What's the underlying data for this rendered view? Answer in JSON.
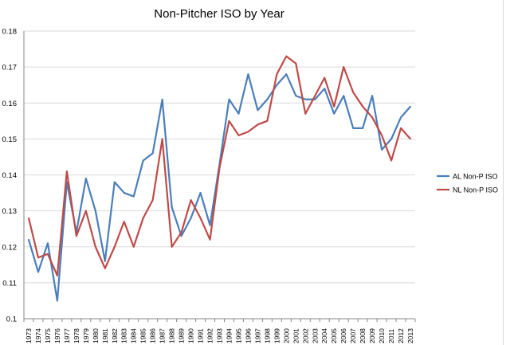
{
  "chart_data": {
    "type": "line",
    "title": "Non-Pitcher ISO by Year",
    "xlabel": "",
    "ylabel": "",
    "ylim": [
      0.1,
      0.18
    ],
    "yticks": [
      "0.1",
      "0.11",
      "0.12",
      "0.13",
      "0.14",
      "0.15",
      "0.16",
      "0.17",
      "0.18"
    ],
    "grid": true,
    "legend_position": "right",
    "categories": [
      "1973",
      "1974",
      "1975",
      "1976",
      "1977",
      "1978",
      "1979",
      "1980",
      "1981",
      "1982",
      "1983",
      "1984",
      "1985",
      "1986",
      "1987",
      "1988",
      "1989",
      "1990",
      "1991",
      "1992",
      "1993",
      "1994",
      "1995",
      "1996",
      "1997",
      "1998",
      "1999",
      "2000",
      "2001",
      "2002",
      "2003",
      "2004",
      "2005",
      "2006",
      "2007",
      "2008",
      "2009",
      "2010",
      "2011",
      "2012",
      "2013"
    ],
    "series": [
      {
        "name": "AL Non-P ISO",
        "color": "#4a7ebb",
        "values": [
          0.122,
          0.113,
          0.121,
          0.105,
          0.138,
          0.124,
          0.139,
          0.13,
          0.116,
          0.138,
          0.135,
          0.134,
          0.144,
          0.146,
          0.161,
          0.131,
          0.123,
          0.128,
          0.135,
          0.126,
          0.143,
          0.161,
          0.157,
          0.168,
          0.158,
          0.161,
          0.165,
          0.168,
          0.162,
          0.161,
          0.161,
          0.164,
          0.157,
          0.162,
          0.153,
          0.153,
          0.162,
          0.147,
          0.15,
          0.156,
          0.159
        ]
      },
      {
        "name": "NL Non-P ISO",
        "color": "#be4b48",
        "values": [
          0.128,
          0.117,
          0.118,
          0.112,
          0.141,
          0.123,
          0.13,
          0.12,
          0.114,
          0.12,
          0.127,
          0.12,
          0.128,
          0.133,
          0.15,
          0.12,
          0.124,
          0.133,
          0.128,
          0.122,
          0.142,
          0.155,
          0.151,
          0.152,
          0.154,
          0.155,
          0.168,
          0.173,
          0.171,
          0.157,
          0.162,
          0.167,
          0.159,
          0.17,
          0.163,
          0.159,
          0.156,
          0.151,
          0.144,
          0.153,
          0.15
        ]
      }
    ]
  }
}
